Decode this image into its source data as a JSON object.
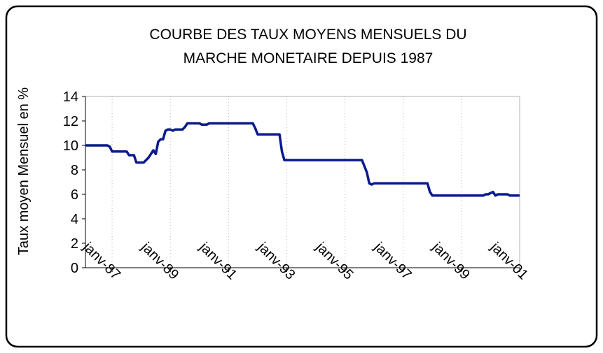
{
  "chart_data": {
    "type": "line",
    "title": [
      "COURBE DES TAUX  MOYENS MENSUELS DU",
      "MARCHE MONETAIRE DEPUIS 1987"
    ],
    "y_label": "Taux moyen Mensuel en %",
    "categories": [
      null,
      null,
      null,
      null,
      null,
      null,
      null,
      null,
      null,
      null,
      null,
      "janv-87",
      null,
      null,
      null,
      null,
      null,
      null,
      null,
      null,
      null,
      null,
      null,
      null,
      null,
      null,
      null,
      null,
      null,
      null,
      null,
      null,
      null,
      null,
      null,
      "janv-89",
      null,
      null,
      null,
      null,
      null,
      null,
      null,
      null,
      null,
      null,
      null,
      null,
      null,
      null,
      null,
      null,
      null,
      null,
      null,
      null,
      null,
      null,
      null,
      "janv-91",
      null,
      null,
      null,
      null,
      null,
      null,
      null,
      null,
      null,
      null,
      null,
      null,
      null,
      null,
      null,
      null,
      null,
      null,
      null,
      null,
      null,
      null,
      null,
      "janv-93",
      null,
      null,
      null,
      null,
      null,
      null,
      null,
      null,
      null,
      null,
      null,
      null,
      null,
      null,
      null,
      null,
      null,
      null,
      null,
      null,
      null,
      null,
      null,
      "janv-95",
      null,
      null,
      null,
      null,
      null,
      null,
      null,
      null,
      null,
      null,
      null,
      null,
      null,
      null,
      null,
      null,
      null,
      null,
      null,
      null,
      null,
      null,
      null,
      "janv-97",
      null,
      null,
      null,
      null,
      null,
      null,
      null,
      null,
      null,
      null,
      null,
      null,
      null,
      null,
      null,
      null,
      null,
      null,
      null,
      null,
      null,
      null,
      null,
      "janv-99",
      null,
      null,
      null,
      null,
      null,
      null,
      null,
      null,
      null,
      null,
      null,
      null,
      null,
      null,
      null,
      null,
      null,
      null,
      null,
      null,
      null,
      null,
      null,
      "janv-01"
    ],
    "series": [
      {
        "color": "#0a1a8c",
        "values": [
          10,
          10,
          10,
          10,
          10,
          10,
          10,
          10,
          10,
          10,
          9.9,
          9.5,
          9.5,
          9.5,
          9.5,
          9.5,
          9.5,
          9.5,
          9.2,
          9.2,
          9.2,
          8.6,
          8.6,
          8.6,
          8.6,
          8.8,
          9.0,
          9.3,
          9.6,
          9.3,
          10.3,
          10.5,
          10.5,
          11.2,
          11.3,
          11.3,
          11.2,
          11.3,
          11.3,
          11.3,
          11.3,
          11.5,
          11.8,
          11.8,
          11.8,
          11.8,
          11.8,
          11.8,
          11.7,
          11.7,
          11.7,
          11.8,
          11.8,
          11.8,
          11.8,
          11.8,
          11.8,
          11.8,
          11.8,
          11.8,
          11.8,
          11.8,
          11.8,
          11.8,
          11.8,
          11.8,
          11.8,
          11.8,
          11.8,
          11.8,
          11.4,
          10.9,
          10.9,
          10.9,
          10.9,
          10.9,
          10.9,
          10.9,
          10.9,
          10.9,
          10.9,
          9.5,
          8.8,
          8.8,
          8.8,
          8.8,
          8.8,
          8.8,
          8.8,
          8.8,
          8.8,
          8.8,
          8.8,
          8.8,
          8.8,
          8.8,
          8.8,
          8.8,
          8.8,
          8.8,
          8.8,
          8.8,
          8.8,
          8.8,
          8.8,
          8.8,
          8.8,
          8.8,
          8.8,
          8.8,
          8.8,
          8.8,
          8.8,
          8.8,
          8.8,
          8.3,
          7.8,
          6.9,
          6.8,
          6.9,
          6.9,
          6.9,
          6.9,
          6.9,
          6.9,
          6.9,
          6.9,
          6.9,
          6.9,
          6.9,
          6.9,
          6.9,
          6.9,
          6.9,
          6.9,
          6.9,
          6.9,
          6.9,
          6.9,
          6.9,
          6.9,
          6.9,
          6.2,
          5.9,
          5.9,
          5.9,
          5.9,
          5.9,
          5.9,
          5.9,
          5.9,
          5.9,
          5.9,
          5.9,
          5.9,
          5.9,
          5.9,
          5.9,
          5.9,
          5.9,
          5.9,
          5.9,
          5.9,
          5.9,
          5.9,
          6.0,
          6.0,
          6.1,
          6.2,
          5.9,
          6.0,
          6.0,
          6.0,
          6.0,
          6.0,
          5.9,
          5.9,
          5.9,
          5.9,
          5.9
        ]
      }
    ],
    "ylim": [
      0,
      14
    ],
    "yticks": [
      0,
      2,
      4,
      6,
      8,
      10,
      12,
      14
    ],
    "grid": "x"
  }
}
